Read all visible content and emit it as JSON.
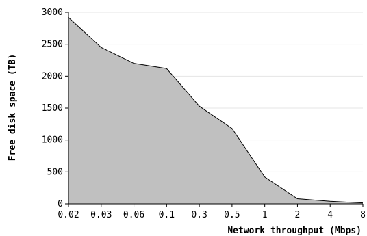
{
  "chart_data": {
    "type": "area",
    "title": "",
    "xlabel": "Network throughput (Mbps)",
    "ylabel": "Free disk space (TB)",
    "x_scale": "log",
    "x": [
      0.02,
      0.03,
      0.06,
      0.1,
      0.3,
      0.5,
      1,
      2,
      4,
      8
    ],
    "x_tick_labels": [
      "0.02",
      "0.03",
      "0.06",
      "0.1",
      "0.3",
      "0.5",
      "1",
      "2",
      "4",
      "8"
    ],
    "ylim": [
      0,
      3000
    ],
    "y_ticks": [
      0,
      500,
      1000,
      1500,
      2000,
      2500,
      3000
    ],
    "grid": "horizontal",
    "series": [
      {
        "values": [
          2920,
          2450,
          2200,
          2120,
          1530,
          1180,
          420,
          80,
          40,
          15
        ],
        "fill_color": "#c0c0c0",
        "line_color": "#000000"
      }
    ]
  }
}
